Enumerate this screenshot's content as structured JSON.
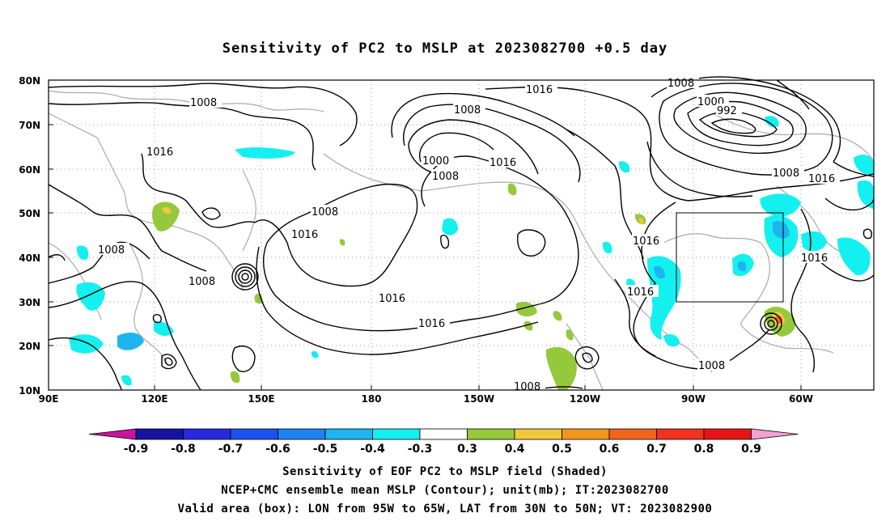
{
  "title": "Sensitivity of PC2 to MSLP at 2023082700 +0.5 day",
  "map": {
    "lat_labels": [
      "80N",
      "70N",
      "60N",
      "50N",
      "40N",
      "30N",
      "20N",
      "10N"
    ],
    "lon_labels": [
      "90E",
      "120E",
      "150E",
      "180",
      "150W",
      "120W",
      "90W",
      "60W"
    ],
    "contour_labels": [
      {
        "text": "1008",
        "key": "a"
      },
      {
        "text": "1016",
        "key": "b"
      },
      {
        "text": "1008",
        "key": "c"
      },
      {
        "text": "1008",
        "key": "d"
      },
      {
        "text": "1008",
        "key": "e"
      },
      {
        "text": "1016",
        "key": "f"
      },
      {
        "text": "1008",
        "key": "g"
      },
      {
        "text": "1000",
        "key": "h"
      },
      {
        "text": "1008",
        "key": "i"
      },
      {
        "text": "1016",
        "key": "j"
      },
      {
        "text": "1016",
        "key": "k"
      },
      {
        "text": "1008",
        "key": "l"
      },
      {
        "text": "1000",
        "key": "m"
      },
      {
        "text": "992",
        "key": "n"
      },
      {
        "text": "1008",
        "key": "o"
      },
      {
        "text": "1016",
        "key": "p"
      },
      {
        "text": "1016",
        "key": "q"
      },
      {
        "text": "1016",
        "key": "r"
      },
      {
        "text": "1016",
        "key": "s"
      },
      {
        "text": "1016",
        "key": "t"
      },
      {
        "text": "1016",
        "key": "u"
      },
      {
        "text": "1008",
        "key": "v"
      },
      {
        "text": "1008",
        "key": "w"
      },
      {
        "text": "1016",
        "key": "x"
      }
    ],
    "valid_box": {
      "lon_from": "95W",
      "lon_to": "65W",
      "lat_from": "30N",
      "lat_to": "50N"
    }
  },
  "colorbar": {
    "labels": [
      "-0.9",
      "-0.8",
      "-0.7",
      "-0.6",
      "-0.5",
      "-0.4",
      "-0.3",
      "0.3",
      "0.4",
      "0.5",
      "0.6",
      "0.7",
      "0.8",
      "0.9"
    ],
    "colors": [
      "#1414a0",
      "#2828dc",
      "#1e50f0",
      "#1e82f0",
      "#1eb4f0",
      "#14f0f0",
      "#ffffff",
      "#96c83c",
      "#f0c83c",
      "#f0961e",
      "#f0641e",
      "#f0321e",
      "#e61414"
    ],
    "low_arrow_color": "#c814a0",
    "high_arrow_color": "#f5a0d2"
  },
  "footer": {
    "line1": "Sensitivity of EOF PC2 to MSLP field (Shaded)",
    "line2": "NCEP+CMC ensemble mean MSLP (Contour); unit(mb); IT:2023082700",
    "line3": "Valid area (box): LON from 95W to 65W, LAT from 30N to 50N; VT: 2023082900"
  }
}
